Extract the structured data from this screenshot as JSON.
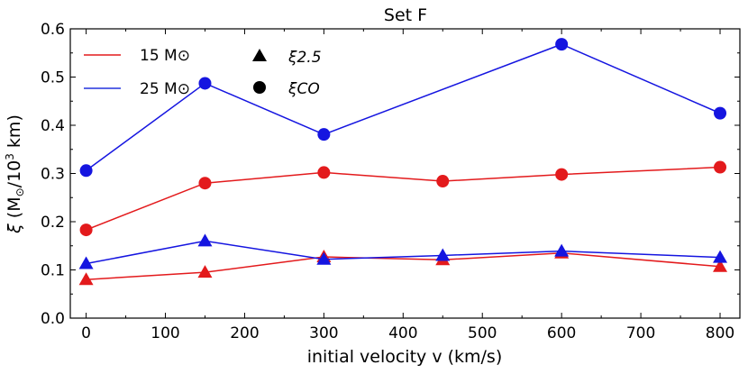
{
  "chart_data": {
    "type": "line",
    "title": "Set F",
    "xlabel": "initial velocity v (km/s)",
    "ylabel": "ξ (M⊙/10³ km)",
    "xlim": [
      -20,
      825
    ],
    "ylim": [
      0.0,
      0.6
    ],
    "x_ticks": [
      0,
      100,
      200,
      300,
      400,
      500,
      600,
      700,
      800
    ],
    "y_ticks": [
      0.0,
      0.1,
      0.2,
      0.3,
      0.4,
      0.5,
      0.6
    ],
    "x_tick_labels": [
      "0",
      "100",
      "200",
      "300",
      "400",
      "500",
      "600",
      "700",
      "800"
    ],
    "y_tick_labels": [
      "0.0",
      "0.1",
      "0.2",
      "0.3",
      "0.4",
      "0.5",
      "0.6"
    ],
    "legend": {
      "placement": "top-left",
      "mass_entries": [
        {
          "label": "15 M⊙",
          "color": "#e31a1c"
        },
        {
          "label": "25 M⊙",
          "color": "#2233dd"
        }
      ],
      "marker_entries": [
        {
          "label": "ξ2.5",
          "marker": "triangle"
        },
        {
          "label": "ξCO",
          "marker": "circle"
        }
      ]
    },
    "series": [
      {
        "name": "15 M⊙ ξCO",
        "mass": "15",
        "quantity": "xi_CO",
        "marker": "circle",
        "color": "#e31a1c",
        "x": [
          0,
          150,
          300,
          450,
          600,
          800
        ],
        "y": [
          0.183,
          0.28,
          0.302,
          0.284,
          0.298,
          0.313
        ]
      },
      {
        "name": "25 M⊙ ξCO",
        "mass": "25",
        "quantity": "xi_CO",
        "marker": "circle",
        "color": "#1515e0",
        "x": [
          0,
          150,
          300,
          600,
          800
        ],
        "y": [
          0.306,
          0.487,
          0.381,
          0.568,
          0.425
        ]
      },
      {
        "name": "15 M⊙ ξ2.5",
        "mass": "15",
        "quantity": "xi_2.5",
        "marker": "triangle",
        "color": "#e31a1c",
        "x": [
          0,
          150,
          300,
          450,
          600,
          800
        ],
        "y": [
          0.08,
          0.095,
          0.127,
          0.121,
          0.135,
          0.107
        ]
      },
      {
        "name": "25 M⊙ ξ2.5",
        "mass": "25",
        "quantity": "xi_2.5",
        "marker": "triangle",
        "color": "#1515e0",
        "x": [
          0,
          150,
          300,
          450,
          600,
          800
        ],
        "y": [
          0.113,
          0.16,
          0.122,
          0.13,
          0.139,
          0.126
        ]
      }
    ]
  }
}
